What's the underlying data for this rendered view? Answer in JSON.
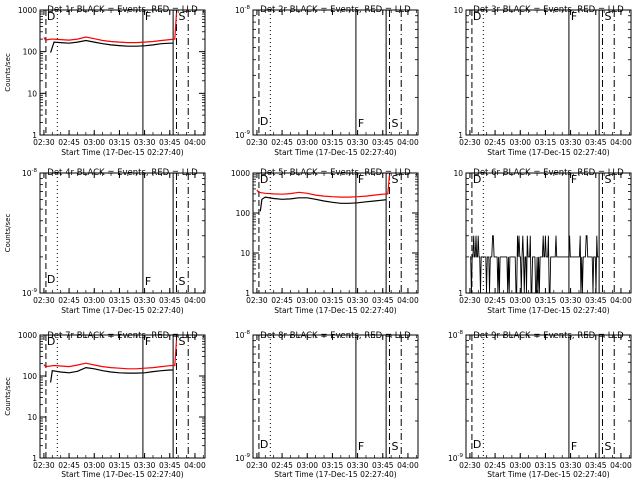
{
  "time_ticks": [
    "02:30",
    "02:45",
    "03:00",
    "03:15",
    "03:30",
    "03:45",
    "04:00"
  ],
  "xlabel": "Start Time (17-Dec-15 02:27:40)",
  "chart_data": [
    {
      "type": "line",
      "title": "Det 1r BLACK = Events, RED = LLD",
      "ylabel": "Counts/sec",
      "yscale": "log",
      "ylim": [
        1,
        1000
      ],
      "yticks": [
        {
          "v": 1,
          "t": "1"
        },
        {
          "v": 10,
          "t": "10"
        },
        {
          "v": 100,
          "t": "100"
        },
        {
          "v": 1000,
          "t": "1000"
        }
      ],
      "markers": {
        "D": true,
        "F": true,
        "S": true,
        "D_level": "top"
      },
      "series": [
        {
          "name": "Events",
          "color": "#000000",
          "x": [
            "02:34",
            "02:36",
            "02:40",
            "02:45",
            "02:50",
            "02:55",
            "03:00",
            "03:05",
            "03:10",
            "03:15",
            "03:20",
            "03:25",
            "03:30",
            "03:35",
            "03:40",
            "03:45",
            "03:47"
          ],
          "values": [
            95,
            170,
            165,
            160,
            170,
            185,
            170,
            155,
            145,
            140,
            135,
            135,
            138,
            145,
            155,
            160,
            160
          ]
        },
        {
          "name": "LLD",
          "color": "#ff0000",
          "x": [
            "02:30",
            "02:31",
            "02:34",
            "02:36",
            "02:40",
            "02:45",
            "02:50",
            "02:55",
            "03:00",
            "03:05",
            "03:10",
            "03:15",
            "03:20",
            "03:25",
            "03:30",
            "03:35",
            "03:40",
            "03:45",
            "03:48",
            "03:49"
          ],
          "values": [
            220,
            190,
            200,
            200,
            195,
            190,
            200,
            225,
            205,
            185,
            175,
            170,
            165,
            165,
            170,
            175,
            185,
            195,
            200,
            850
          ]
        }
      ]
    },
    {
      "type": "line",
      "title": "Det 2r BLACK = Events, RED = LLD",
      "ylabel": "",
      "yscale": "log",
      "ylim": [
        1e-09,
        1e-08
      ],
      "yticks": [
        {
          "v": 1e-09,
          "t": "10^-9"
        },
        {
          "v": 1e-08,
          "t": "10^-8"
        }
      ],
      "yticks_minor": [
        "2e-9",
        "4e-9",
        "6e-9",
        "8e-9"
      ],
      "markers": {
        "D": true,
        "F": true,
        "S": true,
        "D_level": "bottom"
      },
      "series": []
    },
    {
      "type": "line",
      "title": "Det 3r BLACK = Events, RED = LLD",
      "ylabel": "",
      "yscale": "log",
      "ylim": [
        1,
        10
      ],
      "yticks": [
        {
          "v": 1,
          "t": "1"
        },
        {
          "v": 10,
          "t": "10"
        }
      ],
      "markers": {
        "D": true,
        "F": true,
        "S": true,
        "D_level": "top"
      },
      "series": []
    },
    {
      "type": "line",
      "title": "Det 4r BLACK = Events, RED = LLD",
      "ylabel": "Counts/sec",
      "yscale": "log",
      "ylim": [
        1e-09,
        1e-08
      ],
      "yticks": [
        {
          "v": 1e-09,
          "t": "10^-9"
        },
        {
          "v": 1e-08,
          "t": "10^-8"
        }
      ],
      "yticks_minor": [
        "2e-9",
        "4e-9",
        "6e-9",
        "8e-9"
      ],
      "markers": {
        "D": true,
        "F": true,
        "S": true,
        "D_level": "bottom"
      },
      "series": []
    },
    {
      "type": "line",
      "title": "Det 5r BLACK = Events, RED = LLD",
      "ylabel": "",
      "yscale": "log",
      "ylim": [
        1,
        1000
      ],
      "yticks": [
        {
          "v": 1,
          "t": "1"
        },
        {
          "v": 10,
          "t": "10"
        },
        {
          "v": 100,
          "t": "100"
        },
        {
          "v": 1000,
          "t": "1000"
        }
      ],
      "markers": {
        "D": true,
        "F": true,
        "S": true,
        "D_level": "top"
      },
      "series": [
        {
          "name": "Events",
          "color": "#000000",
          "x": [
            "02:32",
            "02:33",
            "02:35",
            "02:40",
            "02:45",
            "02:50",
            "02:55",
            "03:00",
            "03:05",
            "03:10",
            "03:15",
            "03:20",
            "03:25",
            "03:30",
            "03:35",
            "03:40",
            "03:45",
            "03:47"
          ],
          "values": [
            110,
            220,
            250,
            230,
            220,
            225,
            240,
            240,
            220,
            200,
            185,
            175,
            175,
            180,
            190,
            200,
            210,
            215
          ]
        },
        {
          "name": "LLD",
          "color": "#ff0000",
          "x": [
            "02:30",
            "02:31",
            "02:33",
            "02:35",
            "02:40",
            "02:45",
            "02:50",
            "02:55",
            "03:00",
            "03:05",
            "03:10",
            "03:15",
            "03:20",
            "03:25",
            "03:30",
            "03:35",
            "03:40",
            "03:45",
            "03:48",
            "03:49"
          ],
          "values": [
            380,
            330,
            320,
            310,
            300,
            295,
            305,
            330,
            310,
            280,
            265,
            255,
            250,
            250,
            255,
            265,
            280,
            295,
            300,
            900
          ]
        }
      ]
    },
    {
      "type": "line",
      "title": "Det 6r BLACK = Events, RED = LLD",
      "ylabel": "",
      "yscale": "log",
      "ylim": [
        1,
        10
      ],
      "yticks": [
        {
          "v": 1,
          "t": "1"
        },
        {
          "v": 10,
          "t": "10"
        }
      ],
      "markers": {
        "D": true,
        "F": true,
        "S": true,
        "D_level": "top"
      },
      "series": [
        {
          "name": "Events",
          "color": "#000000",
          "x": [],
          "values": [],
          "note": "noisy low-count events between ~1 and ~3 counts/sec from 02:30 to 03:47"
        }
      ]
    },
    {
      "type": "line",
      "title": "Det 7r BLACK = Events, RED = LLD",
      "ylabel": "Counts/sec",
      "yscale": "log",
      "ylim": [
        1,
        1000
      ],
      "yticks": [
        {
          "v": 1,
          "t": "1"
        },
        {
          "v": 10,
          "t": "10"
        },
        {
          "v": 100,
          "t": "100"
        },
        {
          "v": 1000,
          "t": "1000"
        }
      ],
      "markers": {
        "D": true,
        "F": true,
        "S": true,
        "D_level": "top"
      },
      "series": [
        {
          "name": "Events",
          "color": "#000000",
          "x": [
            "02:34",
            "02:35",
            "02:40",
            "02:45",
            "02:50",
            "02:55",
            "03:00",
            "03:05",
            "03:10",
            "03:15",
            "03:20",
            "03:25",
            "03:30",
            "03:35",
            "03:40",
            "03:45",
            "03:47"
          ],
          "values": [
            70,
            135,
            125,
            120,
            130,
            160,
            150,
            135,
            125,
            120,
            118,
            118,
            120,
            128,
            135,
            140,
            140
          ]
        },
        {
          "name": "LLD",
          "color": "#ff0000",
          "x": [
            "02:30",
            "02:31",
            "02:34",
            "02:36",
            "02:40",
            "02:45",
            "02:50",
            "02:55",
            "03:00",
            "03:05",
            "03:10",
            "03:15",
            "03:20",
            "03:25",
            "03:30",
            "03:35",
            "03:40",
            "03:45",
            "03:48",
            "03:49"
          ],
          "values": [
            190,
            170,
            175,
            180,
            175,
            170,
            185,
            205,
            185,
            170,
            160,
            155,
            150,
            150,
            155,
            160,
            170,
            178,
            180,
            750
          ]
        }
      ]
    },
    {
      "type": "line",
      "title": "Det 8r BLACK = Events, RED = LLD",
      "ylabel": "",
      "yscale": "log",
      "ylim": [
        1e-09,
        1e-08
      ],
      "yticks": [
        {
          "v": 1e-09,
          "t": "10^-9"
        },
        {
          "v": 1e-08,
          "t": "10^-8"
        }
      ],
      "yticks_minor": [
        "2e-9",
        "4e-9",
        "6e-9",
        "8e-9"
      ],
      "markers": {
        "D": true,
        "F": true,
        "S": true,
        "D_level": "bottom"
      },
      "series": []
    },
    {
      "type": "line",
      "title": "Det 9r BLACK = Events, RED = LLD",
      "ylabel": "",
      "yscale": "log",
      "ylim": [
        1e-09,
        1e-08
      ],
      "yticks": [
        {
          "v": 1e-09,
          "t": "10^-9"
        },
        {
          "v": 1e-08,
          "t": "10^-8"
        }
      ],
      "yticks_minor": [
        "2e-9",
        "4e-9",
        "6e-9",
        "8e-9"
      ],
      "markers": {
        "D": true,
        "F": true,
        "S": true,
        "D_level": "bottom"
      },
      "series": []
    }
  ],
  "vlines": [
    {
      "time": "02:38",
      "style": "dotted"
    },
    {
      "time": "03:29",
      "style": "solid",
      "label": "F"
    },
    {
      "time": "03:47",
      "style": "solid"
    },
    {
      "time": "03:49",
      "style": "dashdot",
      "label": "S"
    },
    {
      "time": "03:56",
      "style": "dashdot"
    }
  ],
  "left_marker": {
    "time": "02:30",
    "label": "D",
    "style": "dashed"
  }
}
